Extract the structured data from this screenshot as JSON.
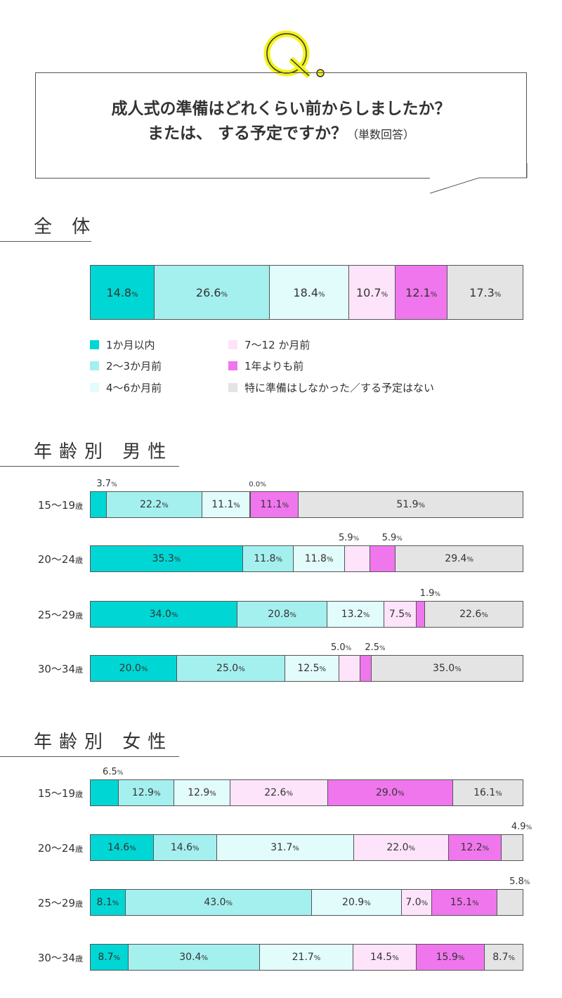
{
  "question": {
    "mark": "Q.",
    "line1": "成人式の準備はどれくらい前からしましたか？",
    "line2": "または、 する予定ですか？",
    "note": "（単数回答）"
  },
  "colors": [
    "#00d7d4",
    "#a4f0ef",
    "#e2fbfb",
    "#fde4fa",
    "#f076ed",
    "#e4e4e4"
  ],
  "chart_data": [
    {
      "type": "bar",
      "stacked": true,
      "orientation": "horizontal",
      "title": "全 体",
      "unit": "%",
      "legend": [
        "1か月以内",
        "2～3か月前",
        "4～6か月前",
        "7～12 か月前",
        "1年よりも前",
        "特に準備はしなかった／する予定はない"
      ],
      "categories": [
        ""
      ],
      "values": [
        [
          14.8,
          26.6,
          18.4,
          10.7,
          12.1,
          17.3
        ]
      ]
    },
    {
      "type": "bar",
      "stacked": true,
      "orientation": "horizontal",
      "title": "年齢別 男性",
      "unit": "%",
      "categories": [
        "15～19",
        "20～24",
        "25～29",
        "30～34"
      ],
      "category_suffix": "歳",
      "values": [
        [
          3.7,
          22.2,
          11.1,
          0.0,
          11.1,
          51.9
        ],
        [
          35.3,
          11.8,
          11.8,
          5.9,
          5.9,
          29.4
        ],
        [
          34.0,
          20.8,
          13.2,
          7.5,
          1.9,
          22.6
        ],
        [
          20.0,
          25.0,
          12.5,
          5.0,
          2.5,
          35.0
        ]
      ]
    },
    {
      "type": "bar",
      "stacked": true,
      "orientation": "horizontal",
      "title": "年齢別 女性",
      "unit": "%",
      "categories": [
        "15～19",
        "20～24",
        "25～29",
        "30～34"
      ],
      "category_suffix": "歳",
      "values": [
        [
          6.5,
          12.9,
          12.9,
          22.6,
          29.0,
          16.1
        ],
        [
          14.6,
          14.6,
          31.7,
          22.0,
          12.2,
          4.9
        ],
        [
          8.1,
          43.0,
          20.9,
          7.0,
          15.1,
          5.8
        ],
        [
          8.7,
          30.4,
          21.7,
          14.5,
          15.9,
          8.7
        ]
      ]
    }
  ]
}
